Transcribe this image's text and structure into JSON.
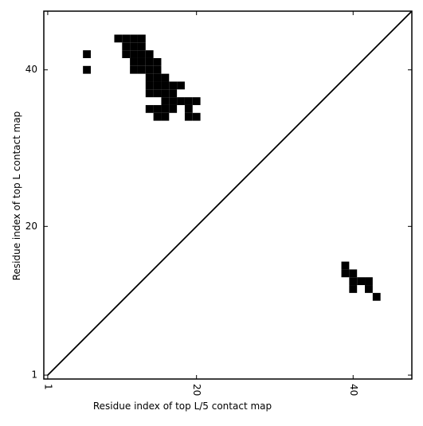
{
  "chart_data": {
    "type": "scatter",
    "x_label": "Residue index of top L/5 contact map",
    "y_label": "Residue index of top L contact map",
    "x": [
      10,
      11,
      12,
      13,
      11,
      12,
      13,
      6,
      11,
      12,
      13,
      14,
      12,
      13,
      14,
      15,
      6,
      12,
      13,
      14,
      15,
      14,
      15,
      16,
      14,
      15,
      16,
      17,
      18,
      14,
      15,
      16,
      17,
      16,
      17,
      18,
      19,
      20,
      14,
      15,
      16,
      17,
      19,
      15,
      16,
      19,
      20,
      39,
      39,
      40,
      40,
      41,
      42,
      40,
      42,
      43
    ],
    "y": [
      44,
      44,
      44,
      44,
      43,
      43,
      43,
      42,
      42,
      42,
      42,
      42,
      41,
      41,
      41,
      41,
      40,
      40,
      40,
      40,
      40,
      39,
      39,
      39,
      38,
      38,
      38,
      38,
      38,
      37,
      37,
      37,
      37,
      36,
      36,
      36,
      36,
      36,
      35,
      35,
      35,
      35,
      35,
      34,
      34,
      34,
      34,
      15,
      14,
      14,
      13,
      13,
      13,
      12,
      12,
      11
    ],
    "color": "#000000",
    "xlim": [
      0.5,
      47.5
    ],
    "ylim": [
      0.5,
      47.5
    ],
    "xticks": [
      1,
      20,
      40
    ],
    "yticks": [
      1,
      20,
      40
    ]
  }
}
